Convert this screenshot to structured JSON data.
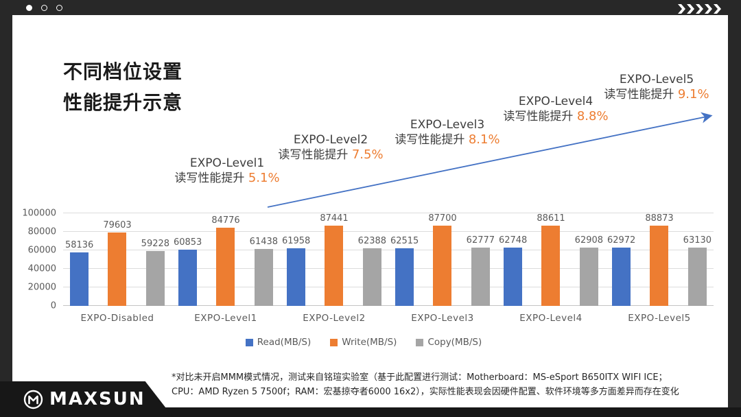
{
  "window": {
    "slide_dots": [
      "filled",
      "outline",
      "outline"
    ],
    "chevron_count": 5
  },
  "title": {
    "line1": "不同档位设置",
    "line2": "性能提升示意"
  },
  "annotations": [
    {
      "label": "EXPO-Level1",
      "text": "读写性能提升 ",
      "percent": "5.1%"
    },
    {
      "label": "EXPO-Level2",
      "text": "读写性能提升 ",
      "percent": "7.5%"
    },
    {
      "label": "EXPO-Level3",
      "text": "读写性能提升 ",
      "percent": "8.1%"
    },
    {
      "label": "EXPO-Level4",
      "text": "读写性能提升 ",
      "percent": "8.8%"
    },
    {
      "label": "EXPO-Level5",
      "text": "读写性能提升 ",
      "percent": "9.1%"
    }
  ],
  "chart_data": {
    "type": "bar",
    "categories": [
      "EXPO-Disabled",
      "EXPO-Level1",
      "EXPO-Level2",
      "EXPO-Level3",
      "EXPO-Level4",
      "EXPO-Level5"
    ],
    "series": [
      {
        "name": "Read(MB/S)",
        "color": "#4472C4",
        "values": [
          58136,
          60853,
          61958,
          62515,
          62748,
          62972
        ]
      },
      {
        "name": "Write(MB/S)",
        "color": "#ED7D31",
        "values": [
          79603,
          84776,
          87441,
          87700,
          88611,
          88873
        ]
      },
      {
        "name": "Copy(MB/S)",
        "color": "#A5A5A5",
        "values": [
          59228,
          61438,
          62388,
          62777,
          62908,
          63130
        ]
      }
    ],
    "ylim": [
      0,
      100000
    ],
    "yticks": [
      0,
      20000,
      40000,
      60000,
      80000,
      100000
    ],
    "grid": true,
    "data_labels": true,
    "legend_position": "bottom"
  },
  "trend_arrow": {
    "color": "#4472C4"
  },
  "footnote": {
    "line1": "*对比未开启MMM模式情况，测试来自铭瑄实验室（基于此配置进行测试：Motherboard：MS-eSport B650ITX WIFI ICE；",
    "line2": "CPU：AMD Ryzen 5 7500f；RAM：宏基掠夺者6000 16x2），实际性能表现会因硬件配置、软件环境等多方面差异而存在变化"
  },
  "logo": {
    "text": "MAXSUN"
  },
  "colors": {
    "frame": "#282828",
    "accent_blue": "#4472C4",
    "accent_orange": "#ED7D31",
    "bar_gray": "#A5A5A5",
    "label_gray": "#595959"
  }
}
